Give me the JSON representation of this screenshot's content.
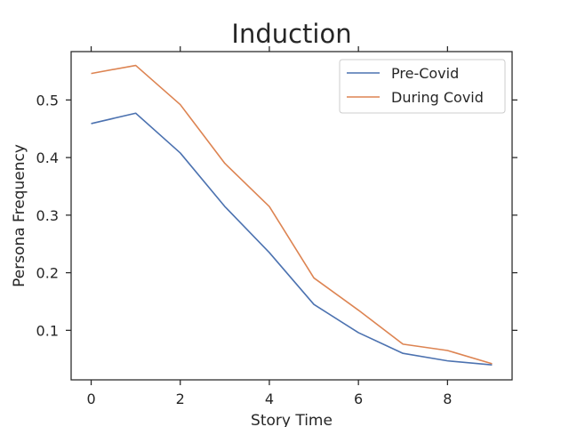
{
  "chart_data": {
    "type": "line",
    "title": "Induction",
    "xlabel": "Story Time",
    "ylabel": "Persona Frequency",
    "x": [
      0,
      1,
      2,
      3,
      4,
      5,
      6,
      7,
      8,
      9
    ],
    "xlim": [
      -0.45,
      9.45
    ],
    "ylim": [
      0.014,
      0.584
    ],
    "xticks": [
      0,
      2,
      4,
      6,
      8
    ],
    "yticks": [
      0.1,
      0.2,
      0.3,
      0.4,
      0.5
    ],
    "ytick_labels": [
      "0.1",
      "0.2",
      "0.3",
      "0.4",
      "0.5"
    ],
    "grid": false,
    "legend_position": "top-right",
    "series": [
      {
        "name": "Pre-Covid",
        "color": "#4c72b0",
        "values": [
          0.459,
          0.477,
          0.408,
          0.315,
          0.235,
          0.145,
          0.096,
          0.06,
          0.047,
          0.04
        ]
      },
      {
        "name": "During Covid",
        "color": "#dd8452",
        "values": [
          0.546,
          0.56,
          0.492,
          0.39,
          0.315,
          0.191,
          0.135,
          0.076,
          0.065,
          0.042
        ]
      }
    ]
  }
}
